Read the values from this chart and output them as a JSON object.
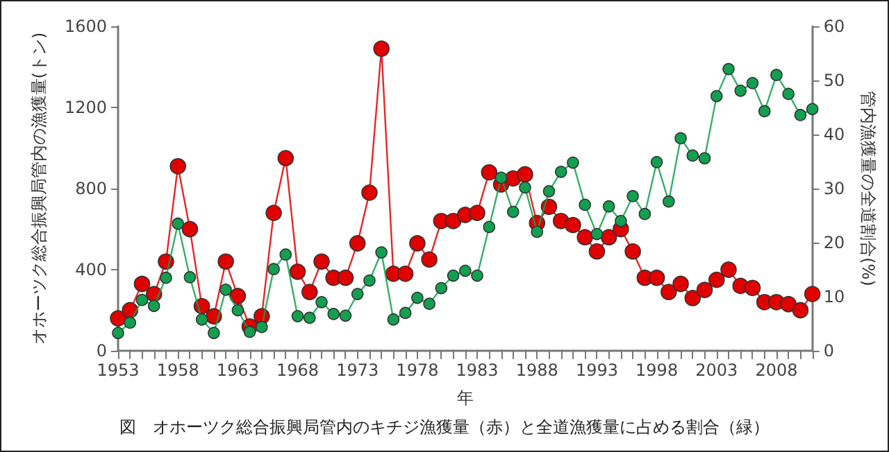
{
  "chart_data": {
    "type": "line",
    "title": "図　オホーツク総合振興局管内のキチジ漁獲量（赤）と全道漁獲量に占める割合（緑）",
    "xlabel": "年",
    "ylabel": "オホーツク総合振興局管内の漁獲量(トン)",
    "y2label": "管内漁獲量の全道割合(%)",
    "x": [
      1953,
      1954,
      1955,
      1956,
      1957,
      1958,
      1959,
      1960,
      1961,
      1962,
      1963,
      1964,
      1965,
      1966,
      1967,
      1968,
      1969,
      1970,
      1971,
      1972,
      1973,
      1974,
      1975,
      1976,
      1977,
      1978,
      1979,
      1980,
      1981,
      1982,
      1983,
      1984,
      1985,
      1986,
      1987,
      1988,
      1989,
      1990,
      1991,
      1992,
      1993,
      1994,
      1995,
      1996,
      1997,
      1998,
      1999,
      2000,
      2001,
      2002,
      2003,
      2004,
      2005,
      2006,
      2007,
      2008,
      2009,
      2010,
      2011
    ],
    "series": [
      {
        "color": "#e00000",
        "values": [
          160,
          200,
          330,
          280,
          440,
          910,
          600,
          220,
          170,
          440,
          270,
          120,
          170,
          680,
          950,
          390,
          290,
          440,
          360,
          360,
          530,
          780,
          1490,
          380,
          380,
          530,
          450,
          640,
          640,
          670,
          680,
          880,
          820,
          850,
          870,
          630,
          710,
          640,
          620,
          560,
          490,
          560,
          600,
          490,
          360,
          360,
          290,
          330,
          260,
          300,
          350,
          400,
          320,
          310,
          240,
          240,
          230,
          200,
          280
        ]
      },
      {
        "color": "#12a050",
        "axis": "y2",
        "values": [
          3.3,
          5.2,
          9.4,
          8.3,
          13.5,
          23.5,
          13.6,
          5.8,
          3.3,
          11.3,
          7.5,
          3.5,
          4.4,
          15.1,
          17.8,
          6.4,
          6.1,
          9.0,
          6.8,
          6.5,
          10.5,
          13.0,
          18.2,
          5.8,
          7.0,
          9.8,
          8.7,
          11.6,
          13.9,
          14.8,
          13.9,
          22.9,
          32.0,
          25.7,
          30.2,
          22.0,
          29.5,
          33.1,
          34.8,
          27.0,
          21.6,
          26.7,
          24.0,
          28.6,
          25.3,
          34.9,
          27.6,
          39.3,
          36.1,
          35.6,
          47.1,
          52.1,
          48.1,
          49.5,
          44.3,
          51.0,
          47.5,
          43.6,
          44.7
        ]
      }
    ],
    "xlim": [
      1953,
      2011
    ],
    "xticks": [
      1953,
      {
        "value": 1954,
        "label": null
      },
      {
        "value": 1955,
        "label": null
      },
      {
        "value": 1956,
        "label": null
      },
      {
        "value": 1957,
        "label": null
      },
      1958,
      {
        "value": 1959,
        "label": null
      },
      {
        "value": 1960,
        "label": null
      },
      {
        "value": 1961,
        "label": null
      },
      {
        "value": 1962,
        "label": null
      },
      1963,
      {
        "value": 1964,
        "label": null
      },
      {
        "value": 1965,
        "label": null
      },
      {
        "value": 1966,
        "label": null
      },
      {
        "value": 1967,
        "label": null
      },
      1968,
      {
        "value": 1969,
        "label": null
      },
      {
        "value": 1970,
        "label": null
      },
      {
        "value": 1971,
        "label": null
      },
      {
        "value": 1972,
        "label": null
      },
      1973,
      {
        "value": 1974,
        "label": null
      },
      {
        "value": 1975,
        "label": null
      },
      {
        "value": 1976,
        "label": null
      },
      {
        "value": 1977,
        "label": null
      },
      1978,
      {
        "value": 1979,
        "label": null
      },
      {
        "value": 1980,
        "label": null
      },
      {
        "value": 1981,
        "label": null
      },
      {
        "value": 1982,
        "label": null
      },
      1983,
      {
        "value": 1984,
        "label": null
      },
      {
        "value": 1985,
        "label": null
      },
      {
        "value": 1986,
        "label": null
      },
      {
        "value": 1987,
        "label": null
      },
      1988,
      {
        "value": 1989,
        "label": null
      },
      {
        "value": 1990,
        "label": null
      },
      {
        "value": 1991,
        "label": null
      },
      {
        "value": 1992,
        "label": null
      },
      1993,
      {
        "value": 1994,
        "label": null
      },
      {
        "value": 1995,
        "label": null
      },
      {
        "value": 1996,
        "label": null
      },
      {
        "value": 1997,
        "label": null
      },
      1998,
      {
        "value": 1999,
        "label": null
      },
      {
        "value": 2000,
        "label": null
      },
      {
        "value": 2001,
        "label": null
      },
      {
        "value": 2002,
        "label": null
      },
      2003,
      {
        "value": 2004,
        "label": null
      },
      {
        "value": 2005,
        "label": null
      },
      {
        "value": 2006,
        "label": null
      },
      {
        "value": 2007,
        "label": null
      },
      2008,
      {
        "value": 2009,
        "label": null
      },
      {
        "value": 2010,
        "label": null
      },
      {
        "value": 2011,
        "label": null
      }
    ],
    "ylim": [
      0,
      1600
    ],
    "yticks": [
      0,
      400,
      800,
      1200,
      1600
    ],
    "y2lim": [
      0,
      60
    ],
    "y2ticks": [
      0,
      10,
      20,
      30,
      40,
      50,
      60
    ],
    "grid": false,
    "marker": "circle",
    "line_style": "solid"
  }
}
